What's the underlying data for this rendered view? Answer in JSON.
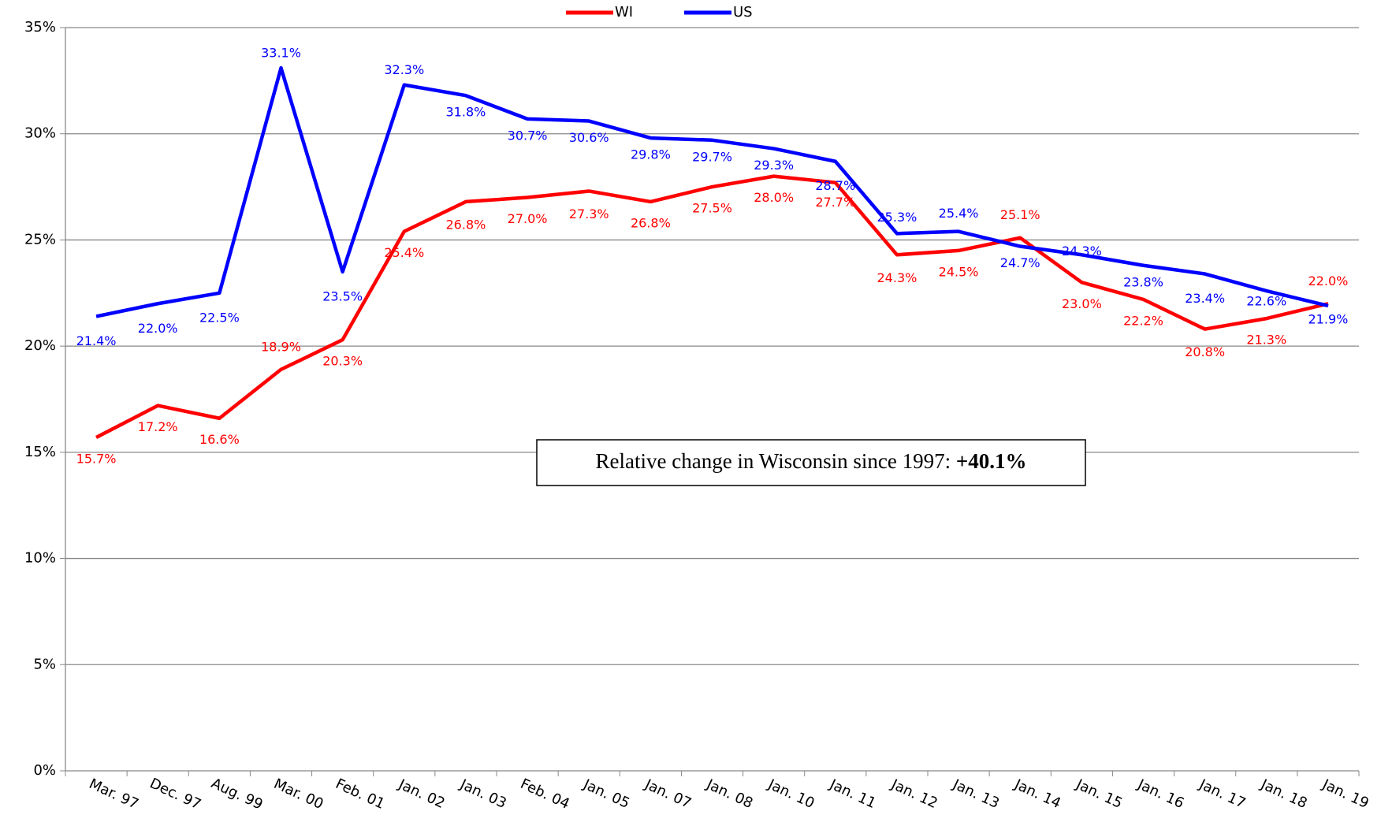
{
  "chart_data": {
    "type": "line",
    "categories": [
      "Mar. 97",
      "Dec. 97",
      "Aug. 99",
      "Mar. 00",
      "Feb. 01",
      "Jan. 02",
      "Jan. 03",
      "Feb. 04",
      "Jan. 05",
      "Jan. 07",
      "Jan. 08",
      "Jan. 10",
      "Jan. 11",
      "Jan. 12",
      "Jan. 13",
      "Jan. 14",
      "Jan. 15",
      "Jan. 16",
      "Jan. 17",
      "Jan. 18",
      "Jan. 19"
    ],
    "series": [
      {
        "name": "WI",
        "color": "#ff0000",
        "values": [
          15.7,
          17.2,
          16.6,
          18.9,
          20.3,
          25.4,
          26.8,
          27.0,
          27.3,
          26.8,
          27.5,
          28.0,
          27.7,
          24.3,
          24.5,
          25.1,
          23.0,
          22.2,
          20.8,
          21.3,
          22.0
        ],
        "value_labels": [
          "15.7%",
          "17.2%",
          "16.6%",
          "18.9%",
          "20.3%",
          "25.4%",
          "26.8%",
          "27.0%",
          "27.3%",
          "26.8%",
          "27.5%",
          "28.0%",
          "27.7%",
          "24.3%",
          "24.5%",
          "25.1%",
          "23.0%",
          "22.2%",
          "20.8%",
          "21.3%",
          "22.0%"
        ]
      },
      {
        "name": "US",
        "color": "#0000ff",
        "values": [
          21.4,
          22.0,
          22.5,
          33.1,
          23.5,
          32.3,
          31.8,
          30.7,
          30.6,
          29.8,
          29.7,
          29.3,
          28.7,
          25.3,
          25.4,
          24.7,
          24.3,
          23.8,
          23.4,
          22.6,
          21.9
        ],
        "value_labels": [
          "21.4%",
          "22.0%",
          "22.5%",
          "33.1%",
          "23.5%",
          "32.3%",
          "31.8%",
          "30.7%",
          "30.6%",
          "29.8%",
          "29.7%",
          "29.3%",
          "28.7%",
          "25.3%",
          "25.4%",
          "24.7%",
          "24.3%",
          "23.8%",
          "23.4%",
          "22.6%",
          "21.9%"
        ]
      }
    ],
    "ylim": [
      0,
      35
    ],
    "yticks": [
      {
        "value": 0,
        "label": "0%"
      },
      {
        "value": 5,
        "label": "5%"
      },
      {
        "value": 10,
        "label": "10%"
      },
      {
        "value": 15,
        "label": "15%"
      },
      {
        "value": 20,
        "label": "20%"
      },
      {
        "value": 25,
        "label": "25%"
      },
      {
        "value": 30,
        "label": "30%"
      },
      {
        "value": 35,
        "label": "35%"
      }
    ],
    "grid": true,
    "legend": "top",
    "annotation": {
      "text": "Relative change in Wisconsin since 1997:",
      "value": "+40.1%"
    }
  }
}
